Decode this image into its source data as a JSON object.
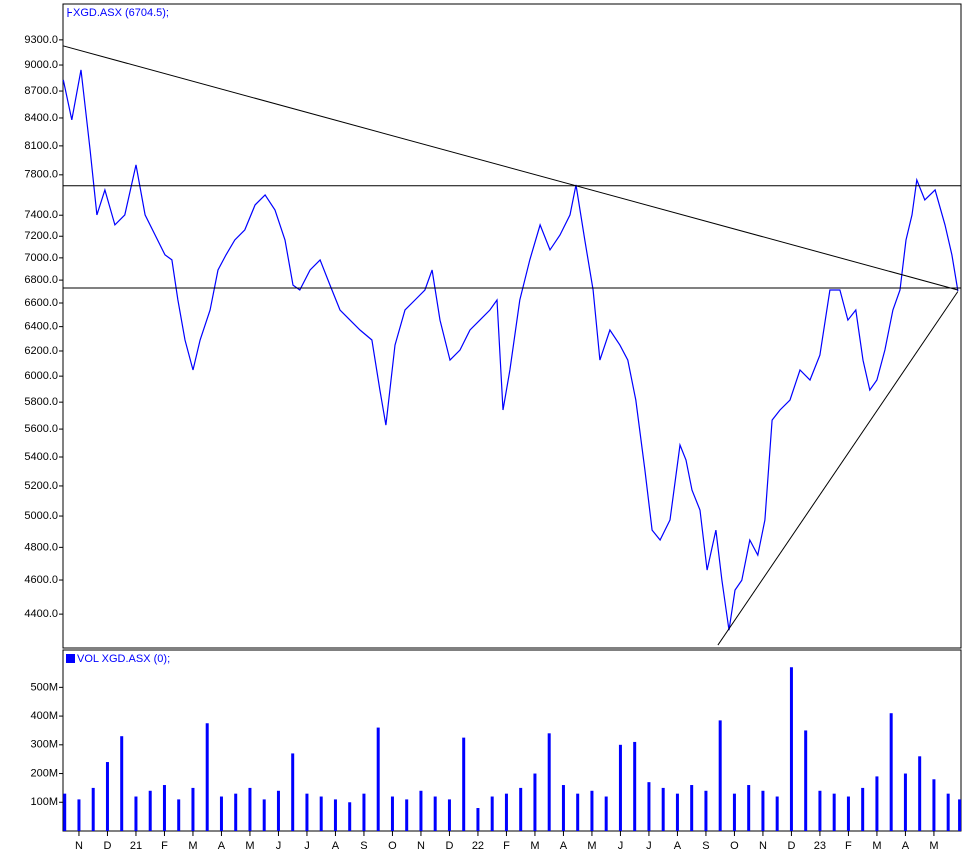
{
  "chart_data": [
    {
      "type": "line",
      "title": "XGD.ASX (6704.5);",
      "color": "#0000ff",
      "log_scale": true,
      "x": [
        -0.55,
        -0.25,
        0.07,
        0.39,
        0.63,
        0.91,
        1.26,
        1.61,
        2.0,
        2.32,
        2.67,
        3.02,
        3.26,
        3.47,
        3.72,
        4.0,
        4.25,
        4.6,
        4.88,
        5.16,
        5.47,
        5.82,
        6.18,
        6.53,
        6.88,
        7.23,
        7.51,
        7.75,
        8.11,
        8.46,
        8.81,
        9.16,
        9.51,
        9.86,
        10.28,
        10.56,
        10.77,
        11.09,
        11.44,
        11.79,
        12.14,
        12.39,
        12.67,
        13.02,
        13.37,
        13.72,
        14.07,
        14.42,
        14.67,
        14.88,
        15.12,
        15.47,
        15.82,
        16.18,
        16.53,
        16.88,
        17.23,
        17.44,
        17.75,
        18.04,
        18.28,
        18.63,
        18.98,
        19.26,
        19.54,
        19.86,
        20.11,
        20.39,
        20.74,
        21.09,
        21.3,
        21.51,
        21.79,
        22.04,
        22.35,
        22.56,
        22.81,
        23.02,
        23.26,
        23.54,
        23.82,
        24.07,
        24.32,
        24.6,
        24.95,
        25.3,
        25.65,
        26.0,
        26.35,
        26.7,
        26.98,
        27.26,
        27.51,
        27.75,
        28.0,
        28.28,
        28.56,
        28.81,
        29.02,
        29.23,
        29.4,
        29.68,
        30.04,
        30.39,
        30.63,
        30.84
      ],
      "values": [
        8827,
        8379,
        8943,
        8058,
        7403,
        7648,
        7307,
        7403,
        7902,
        7403,
        7212,
        7027,
        6981,
        6626,
        6289,
        6048,
        6289,
        6540,
        6890,
        7027,
        7165,
        7260,
        7500,
        7599,
        7451,
        7165,
        6756,
        6713,
        6890,
        6981,
        6756,
        6540,
        6455,
        6372,
        6289,
        5892,
        5629,
        6248,
        6540,
        6626,
        6713,
        6890,
        6455,
        6127,
        6208,
        6372,
        6455,
        6540,
        6626,
        5741,
        6048,
        6626,
        6981,
        7307,
        7073,
        7212,
        7403,
        7698,
        7165,
        6713,
        6127,
        6372,
        6248,
        6127,
        5816,
        5309,
        4909,
        4846,
        4974,
        5485,
        5379,
        5172,
        5039,
        4660,
        4909,
        4599,
        4309,
        4540,
        4599,
        4846,
        4752,
        4974,
        5666,
        5741,
        5816,
        6048,
        5970,
        6167,
        6713,
        6713,
        6455,
        6540,
        6127,
        5892,
        5970,
        6208,
        6540,
        6713,
        7165,
        7403,
        7749,
        7549,
        7648,
        7307,
        7027,
        6704.5
      ],
      "xlim": [
        -0.56,
        30.95
      ],
      "ylim": [
        4210,
        9745
      ],
      "yticks": [
        {
          "value": 4400,
          "label": "4400.0"
        },
        {
          "value": 4600,
          "label": "4600.0"
        },
        {
          "value": 4800,
          "label": "4800.0"
        },
        {
          "value": 5000,
          "label": "5000.0"
        },
        {
          "value": 5200,
          "label": "5200.0"
        },
        {
          "value": 5400,
          "label": "5400.0"
        },
        {
          "value": 5600,
          "label": "5600.0"
        },
        {
          "value": 5800,
          "label": "5800.0"
        },
        {
          "value": 6000,
          "label": "6000.0"
        },
        {
          "value": 6200,
          "label": "6200.0"
        },
        {
          "value": 6400,
          "label": "6400.0"
        },
        {
          "value": 6600,
          "label": "6600.0"
        },
        {
          "value": 6800,
          "label": "6800.0"
        },
        {
          "value": 7000,
          "label": "7000.0"
        },
        {
          "value": 7200,
          "label": "7200.0"
        },
        {
          "value": 7400,
          "label": "7400.0"
        },
        {
          "value": 7800,
          "label": "7800.0"
        },
        {
          "value": 8100,
          "label": "8100.0"
        },
        {
          "value": 8400,
          "label": "8400.0"
        },
        {
          "value": 8700,
          "label": "8700.0"
        },
        {
          "value": 9000,
          "label": "9000.0"
        },
        {
          "value": 9300,
          "label": "9300.0"
        }
      ],
      "lines": [
        {
          "x1": -0.56,
          "y1": 9228,
          "x2": 30.84,
          "y2": 6713
        },
        {
          "x1": -0.56,
          "y1": 7690,
          "x2": 30.95,
          "y2": 7690
        },
        {
          "x1": -0.56,
          "y1": 6730,
          "x2": 30.95,
          "y2": 6730
        },
        {
          "x1": 22.42,
          "y1": 4226,
          "x2": 30.84,
          "y2": 6700
        }
      ]
    },
    {
      "type": "bar",
      "title": "VOL XGD.ASX (0);",
      "color": "#0000ff",
      "x": [
        -0.5,
        0,
        0.5,
        1,
        1.5,
        2,
        2.5,
        3,
        3.5,
        4,
        4.5,
        5,
        5.5,
        6,
        6.5,
        7,
        7.5,
        8,
        8.5,
        9,
        9.5,
        10,
        10.5,
        11,
        11.5,
        12,
        12.5,
        13,
        13.5,
        14,
        14.5,
        15,
        15.5,
        16,
        16.5,
        17,
        17.5,
        18,
        18.5,
        19,
        19.5,
        20,
        20.5,
        21,
        21.5,
        22,
        22.5,
        23,
        23.5,
        24,
        24.5,
        25,
        25.5,
        26,
        26.5,
        27,
        27.5,
        28,
        28.5,
        29,
        29.5,
        30,
        30.5,
        30.9
      ],
      "values": [
        130000000,
        110000000,
        150000000,
        240000000,
        330000000,
        120000000,
        140000000,
        160000000,
        110000000,
        150000000,
        375000000,
        120000000,
        130000000,
        150000000,
        110000000,
        140000000,
        270000000,
        130000000,
        120000000,
        110000000,
        100000000,
        130000000,
        360000000,
        120000000,
        110000000,
        140000000,
        120000000,
        110000000,
        325000000,
        80000000,
        120000000,
        130000000,
        150000000,
        200000000,
        340000000,
        160000000,
        130000000,
        140000000,
        120000000,
        300000000,
        310000000,
        170000000,
        150000000,
        130000000,
        160000000,
        140000000,
        385000000,
        130000000,
        160000000,
        140000000,
        120000000,
        570000000,
        350000000,
        140000000,
        130000000,
        120000000,
        150000000,
        190000000,
        410000000,
        200000000,
        260000000,
        180000000,
        130000000,
        110000000
      ],
      "xlim": [
        -0.56,
        30.95
      ],
      "ylim": [
        0,
        630000000
      ],
      "yticks": [
        {
          "value": 100000000,
          "label": "100M"
        },
        {
          "value": 200000000,
          "label": "200M"
        },
        {
          "value": 300000000,
          "label": "300M"
        },
        {
          "value": 400000000,
          "label": "400M"
        },
        {
          "value": 500000000,
          "label": "500M"
        }
      ],
      "xticks": [
        {
          "value": 0,
          "label": "N"
        },
        {
          "value": 1,
          "label": "D"
        },
        {
          "value": 2,
          "label": "21"
        },
        {
          "value": 3,
          "label": "F"
        },
        {
          "value": 4,
          "label": "M"
        },
        {
          "value": 5,
          "label": "A"
        },
        {
          "value": 6,
          "label": "M"
        },
        {
          "value": 7,
          "label": "J"
        },
        {
          "value": 8,
          "label": "J"
        },
        {
          "value": 9,
          "label": "A"
        },
        {
          "value": 10,
          "label": "S"
        },
        {
          "value": 11,
          "label": "O"
        },
        {
          "value": 12,
          "label": "N"
        },
        {
          "value": 13,
          "label": "D"
        },
        {
          "value": 14,
          "label": "22"
        },
        {
          "value": 15,
          "label": "F"
        },
        {
          "value": 16,
          "label": "M"
        },
        {
          "value": 17,
          "label": "A"
        },
        {
          "value": 18,
          "label": "M"
        },
        {
          "value": 19,
          "label": "J"
        },
        {
          "value": 20,
          "label": "J"
        },
        {
          "value": 21,
          "label": "A"
        },
        {
          "value": 22,
          "label": "S"
        },
        {
          "value": 23,
          "label": "O"
        },
        {
          "value": 24,
          "label": "N"
        },
        {
          "value": 25,
          "label": "D"
        },
        {
          "value": 26,
          "label": "23"
        },
        {
          "value": 27,
          "label": "F"
        },
        {
          "value": 28,
          "label": "M"
        },
        {
          "value": 29,
          "label": "A"
        },
        {
          "value": 30,
          "label": "M"
        }
      ]
    }
  ]
}
